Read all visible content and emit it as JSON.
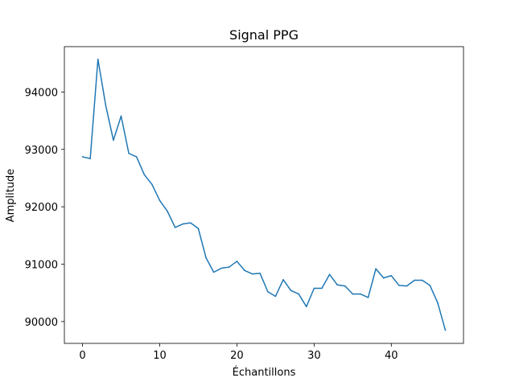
{
  "chart_data": {
    "type": "line",
    "title": "Signal PPG",
    "xlabel": "Échantillons",
    "ylabel": "Amplitude",
    "xlim": [
      -2.35,
      49.35
    ],
    "ylim": [
      89620,
      94790
    ],
    "xticks": [
      0,
      10,
      20,
      30,
      40
    ],
    "yticks": [
      90000,
      91000,
      92000,
      93000,
      94000
    ],
    "grid": false,
    "series": [
      {
        "color": "#1f77b4",
        "x": [
          0,
          1,
          2,
          3,
          4,
          5,
          6,
          7,
          8,
          9,
          10,
          11,
          12,
          13,
          14,
          15,
          16,
          17,
          18,
          19,
          20,
          21,
          22,
          23,
          24,
          25,
          26,
          27,
          28,
          29,
          30,
          31,
          32,
          33,
          34,
          35,
          36,
          37,
          38,
          39,
          40,
          41,
          42,
          43,
          44,
          45,
          46,
          47
        ],
        "values": [
          92870,
          92840,
          94570,
          93770,
          93160,
          93580,
          92930,
          92870,
          92560,
          92390,
          92110,
          91920,
          91640,
          91700,
          91720,
          91620,
          91110,
          90860,
          90930,
          90950,
          91050,
          90890,
          90830,
          90840,
          90520,
          90440,
          90730,
          90540,
          90480,
          90260,
          90580,
          90580,
          90820,
          90640,
          90620,
          90480,
          90480,
          90420,
          90920,
          90760,
          90800,
          90630,
          90620,
          90720,
          90720,
          90630,
          90330,
          89850
        ]
      }
    ]
  }
}
